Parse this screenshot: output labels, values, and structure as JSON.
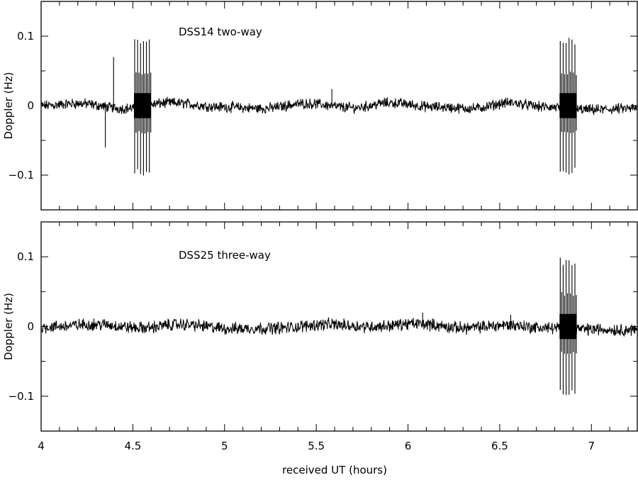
{
  "chart_data": {
    "type": "line",
    "xlabel": "received UT (hours)",
    "xlim": [
      4,
      7.25
    ],
    "x_ticks": [
      4,
      4.5,
      5,
      5.5,
      6,
      6.5,
      7
    ],
    "x_tick_labels": [
      "4",
      "4.5",
      "5",
      "5.5",
      "6",
      "6.5",
      "7"
    ],
    "panels": [
      {
        "title": "DSS14 two-way",
        "ylabel": "Doppler (Hz)",
        "ylim": [
          -0.15,
          0.15
        ],
        "y_ticks": [
          -0.1,
          0,
          0.1
        ],
        "y_tick_labels": [
          "−0.1",
          "0",
          "0.1"
        ],
        "noise_amplitude": 0.006,
        "baseline_wander": [
          {
            "x": 4.0,
            "y": 0.0
          },
          {
            "x": 4.2,
            "y": 0.003
          },
          {
            "x": 4.45,
            "y": -0.004
          },
          {
            "x": 4.7,
            "y": 0.004
          },
          {
            "x": 5.0,
            "y": -0.002
          },
          {
            "x": 5.2,
            "y": -0.004
          },
          {
            "x": 5.45,
            "y": 0.003
          },
          {
            "x": 5.7,
            "y": -0.003
          },
          {
            "x": 5.9,
            "y": 0.004
          },
          {
            "x": 6.15,
            "y": -0.002
          },
          {
            "x": 6.35,
            "y": -0.004
          },
          {
            "x": 6.55,
            "y": 0.004
          },
          {
            "x": 6.75,
            "y": -0.002
          },
          {
            "x": 7.0,
            "y": -0.006
          },
          {
            "x": 7.25,
            "y": -0.004
          }
        ],
        "single_spikes": [
          {
            "x": 4.35,
            "y": -0.06
          },
          {
            "x": 4.395,
            "y": 0.07
          },
          {
            "x": 5.585,
            "y": 0.024
          }
        ],
        "bursts": [
          {
            "x_start": 4.51,
            "x_end": 4.59,
            "count": 6,
            "amplitude": 0.1
          },
          {
            "x_start": 6.83,
            "x_end": 6.91,
            "count": 6,
            "amplitude": 0.1
          }
        ]
      },
      {
        "title": "DSS25 three-way",
        "ylabel": "Doppler (Hz)",
        "ylim": [
          -0.15,
          0.15
        ],
        "y_ticks": [
          -0.1,
          0,
          0.1
        ],
        "y_tick_labels": [
          "−0.1",
          "0",
          "0.1"
        ],
        "noise_amplitude": 0.007,
        "baseline_wander": [
          {
            "x": 4.0,
            "y": -0.001
          },
          {
            "x": 4.3,
            "y": 0.003
          },
          {
            "x": 4.55,
            "y": -0.002
          },
          {
            "x": 4.75,
            "y": 0.003
          },
          {
            "x": 5.05,
            "y": -0.003
          },
          {
            "x": 5.3,
            "y": -0.002
          },
          {
            "x": 5.55,
            "y": 0.003
          },
          {
            "x": 5.8,
            "y": 0.0
          },
          {
            "x": 6.05,
            "y": 0.004
          },
          {
            "x": 6.3,
            "y": -0.002
          },
          {
            "x": 6.55,
            "y": 0.002
          },
          {
            "x": 6.75,
            "y": -0.002
          },
          {
            "x": 7.0,
            "y": -0.004
          },
          {
            "x": 7.25,
            "y": -0.005
          }
        ],
        "single_spikes": [
          {
            "x": 6.08,
            "y": 0.02
          },
          {
            "x": 6.56,
            "y": 0.017
          }
        ],
        "bursts": [
          {
            "x_start": 6.83,
            "x_end": 6.91,
            "count": 6,
            "amplitude": 0.1
          }
        ]
      }
    ]
  }
}
